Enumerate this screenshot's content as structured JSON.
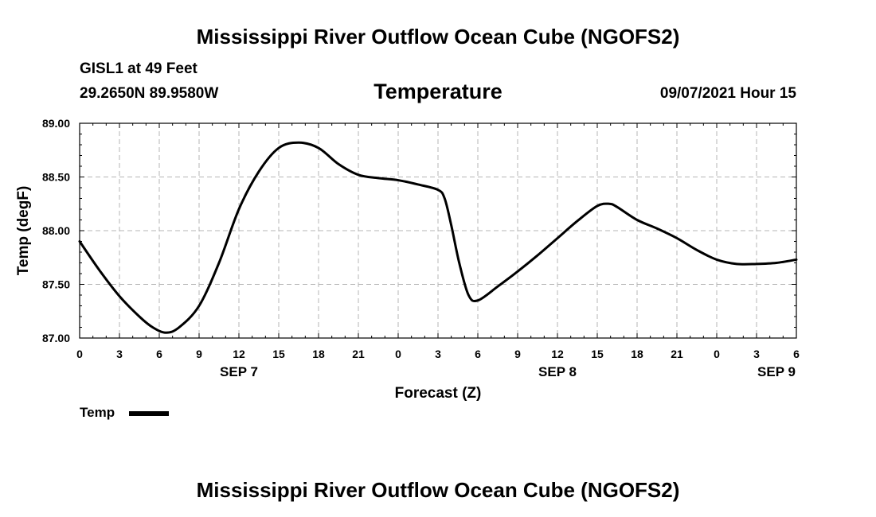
{
  "header": {
    "title": "Mississippi River Outflow Ocean Cube (NGOFS2)",
    "station": "GISL1 at 49 Feet",
    "coords": "29.2650N  89.9580W",
    "variable": "Temperature",
    "datetime": "09/07/2021 Hour 15"
  },
  "footer": {
    "title": "Mississippi River Outflow Ocean Cube (NGOFS2)"
  },
  "legend": {
    "label": "Temp"
  },
  "chart_data": {
    "type": "line",
    "title": "Temperature",
    "xlabel": "Forecast (Z)",
    "ylabel": "Temp (degF)",
    "xlim": [
      0,
      54
    ],
    "ylim": [
      87.0,
      89.0
    ],
    "grid": true,
    "y_ticks": [
      "87.00",
      "87.50",
      "88.00",
      "88.50",
      "89.00"
    ],
    "x_ticks": [
      "0",
      "3",
      "6",
      "9",
      "12",
      "15",
      "18",
      "21",
      "0",
      "3",
      "6",
      "9",
      "12",
      "15",
      "18",
      "21",
      "0",
      "3",
      "6"
    ],
    "date_labels": [
      {
        "label": "SEP 7",
        "hour": 12
      },
      {
        "label": "SEP 8",
        "hour": 36
      },
      {
        "label": "SEP 9",
        "hour": 52.5
      }
    ],
    "series": [
      {
        "name": "Temp",
        "x": [
          0,
          1.5,
          3,
          4.5,
          5.5,
          6.5,
          7.5,
          9,
          10.5,
          12,
          13.5,
          15,
          16.5,
          18,
          19.5,
          21,
          22.5,
          24,
          25.5,
          27,
          27.5,
          28,
          28.6,
          29.3,
          30,
          31.5,
          33,
          34.5,
          36,
          37.5,
          39,
          39.9,
          40.5,
          42,
          43.5,
          45,
          46.5,
          48,
          49.5,
          51,
          52.5,
          54
        ],
        "y": [
          87.9,
          87.63,
          87.39,
          87.2,
          87.1,
          87.05,
          87.1,
          87.3,
          87.7,
          88.2,
          88.55,
          88.77,
          88.82,
          88.77,
          88.62,
          88.52,
          88.49,
          88.47,
          88.43,
          88.38,
          88.3,
          88.05,
          87.7,
          87.4,
          87.35,
          87.48,
          87.62,
          87.77,
          87.93,
          88.09,
          88.23,
          88.25,
          88.22,
          88.1,
          88.02,
          87.93,
          87.82,
          87.73,
          87.69,
          87.69,
          87.7,
          87.73
        ]
      }
    ]
  }
}
